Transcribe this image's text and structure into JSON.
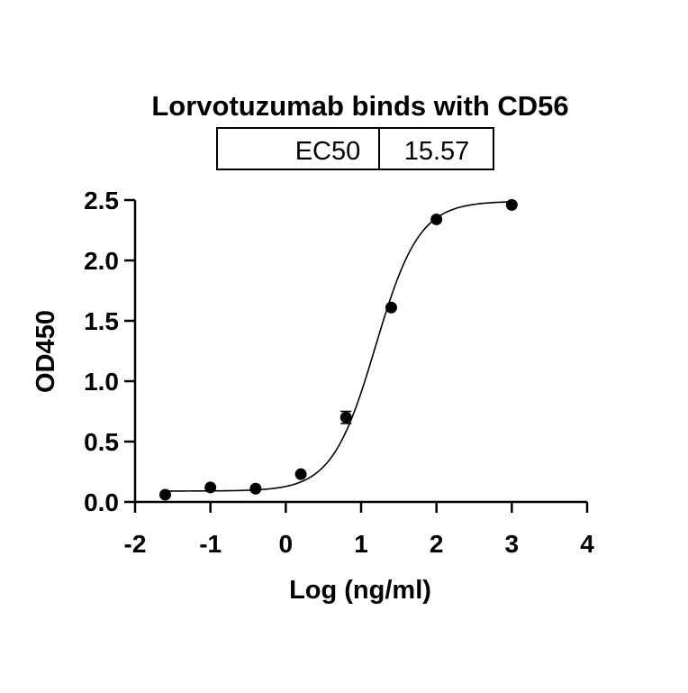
{
  "chart_data": {
    "type": "scatter",
    "title": "Lorvotuzumab binds with CD56",
    "ec50_table": {
      "label": "EC50",
      "value": "15.57"
    },
    "xlabel": "Log (ng/ml)",
    "ylabel": "OD450",
    "xlim": [
      -2,
      4
    ],
    "ylim": [
      0,
      2.5
    ],
    "xticks": [
      -2,
      -1,
      0,
      1,
      2,
      3,
      4
    ],
    "xtick_labels": [
      "-2",
      "-1",
      "0",
      "1",
      "2",
      "3",
      "4"
    ],
    "yticks": [
      0,
      0.5,
      1,
      1.5,
      2,
      2.5
    ],
    "ytick_labels": [
      "0.0",
      "0.5",
      "1.0",
      "1.5",
      "2.0",
      "2.5"
    ],
    "grid": false,
    "points": [
      {
        "x": -1.6,
        "y": 0.06,
        "err": 0.01
      },
      {
        "x": -1.0,
        "y": 0.12,
        "err": 0.01
      },
      {
        "x": -0.4,
        "y": 0.11,
        "err": 0.01
      },
      {
        "x": 0.2,
        "y": 0.23,
        "err": 0.01
      },
      {
        "x": 0.8,
        "y": 0.7,
        "err": 0.05
      },
      {
        "x": 1.4,
        "y": 1.61,
        "err": 0.02
      },
      {
        "x": 2.0,
        "y": 2.34,
        "err": 0.02
      },
      {
        "x": 3.0,
        "y": 2.46,
        "err": 0.01
      }
    ],
    "fit": {
      "type": "4PL",
      "bottom": 0.09,
      "top": 2.49,
      "log_ec50": 1.192,
      "hill": 1.5,
      "x_range": [
        -1.6,
        3.0
      ]
    },
    "colors": {
      "marker": "#000000",
      "line": "#000000",
      "axis": "#000000"
    }
  }
}
